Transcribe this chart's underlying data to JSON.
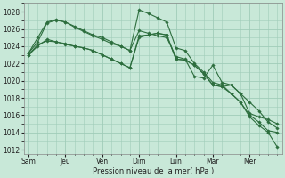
{
  "background_color": "#c8e8d8",
  "grid_color": "#a0ccb8",
  "line_color": "#2d6e3e",
  "xlabel": "Pression niveau de la mer( hPa )",
  "ylim": [
    1011.5,
    1029.0
  ],
  "yticks": [
    1012,
    1014,
    1016,
    1018,
    1020,
    1022,
    1024,
    1026,
    1028
  ],
  "day_labels": [
    "Sam",
    "Jeu",
    "Ven",
    "Dim",
    "Lun",
    "Mar",
    "Mer"
  ],
  "n_points": 28,
  "series": [
    [
      1023.0,
      1024.0,
      1024.8,
      1024.5,
      1024.2,
      1024.0,
      1023.8,
      1023.5,
      1023.0,
      1022.5,
      1022.0,
      1021.5,
      1025.0,
      1025.3,
      1025.5,
      1025.3,
      1022.5,
      1022.4,
      1021.8,
      1020.8,
      1019.5,
      1019.3,
      1018.5,
      1017.5,
      1016.0,
      1015.2,
      1014.2,
      1014.0
    ],
    [
      1023.2,
      1025.0,
      1026.8,
      1027.1,
      1026.8,
      1026.3,
      1025.8,
      1025.3,
      1025.0,
      1024.5,
      1024.0,
      1023.5,
      1028.2,
      1027.8,
      1027.3,
      1026.8,
      1023.8,
      1023.5,
      1022.0,
      1021.0,
      1019.8,
      1019.5,
      1018.5,
      1017.5,
      1015.8,
      1014.8,
      1014.0,
      1012.3
    ],
    [
      1023.2,
      1024.5,
      1026.7,
      1027.0,
      1026.8,
      1026.2,
      1025.7,
      1025.2,
      1024.8,
      1024.3,
      1024.0,
      1023.5,
      1025.8,
      1025.5,
      1025.2,
      1025.0,
      1022.8,
      1022.5,
      1020.5,
      1020.3,
      1021.8,
      1019.8,
      1019.5,
      1018.5,
      1017.5,
      1016.5,
      1015.2,
      1014.5
    ],
    [
      1023.0,
      1024.2,
      1024.6,
      1024.5,
      1024.3,
      1024.0,
      1023.8,
      1023.5,
      1023.0,
      1022.5,
      1022.0,
      1021.5,
      1025.2,
      1025.3,
      1025.5,
      1025.3,
      1022.5,
      1022.4,
      1021.8,
      1020.8,
      1019.5,
      1019.3,
      1019.5,
      1018.5,
      1016.2,
      1015.8,
      1015.5,
      1015.0
    ]
  ]
}
